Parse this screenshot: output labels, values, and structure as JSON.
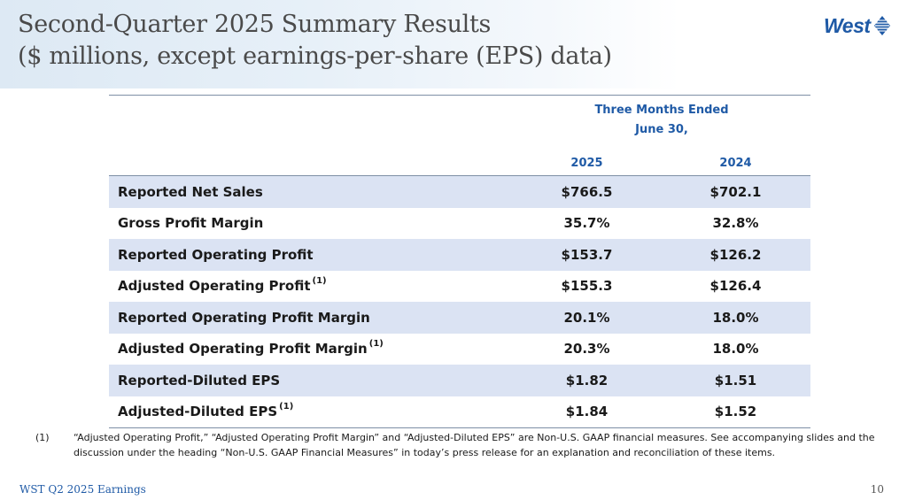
{
  "slide": {
    "title_line1": "Second-Quarter 2025 Summary Results",
    "title_line2": "($ millions, except earnings-per-share (EPS) data)",
    "logo_text": "West"
  },
  "table": {
    "group_header_line1": "Three Months Ended",
    "group_header_line2": "June 30,",
    "col_2025": "2025",
    "col_2024": "2024",
    "rows": [
      {
        "label": "Reported Net Sales",
        "note": "",
        "v2025": "$766.5",
        "v2024": "$702.1"
      },
      {
        "label": "Gross Profit Margin",
        "note": "",
        "v2025": "35.7%",
        "v2024": "32.8%"
      },
      {
        "label": "Reported Operating Profit",
        "note": "",
        "v2025": "$153.7",
        "v2024": "$126.2"
      },
      {
        "label": "Adjusted Operating Profit",
        "note": "(1)",
        "v2025": "$155.3",
        "v2024": "$126.4"
      },
      {
        "label": "Reported Operating Profit Margin",
        "note": "",
        "v2025": "20.1%",
        "v2024": "18.0%"
      },
      {
        "label": "Adjusted Operating Profit Margin",
        "note": "(1)",
        "v2025": "20.3%",
        "v2024": "18.0%"
      },
      {
        "label": "Reported-Diluted EPS",
        "note": "",
        "v2025": "$1.82",
        "v2024": "$1.51"
      },
      {
        "label": "Adjusted-Diluted EPS",
        "note": "(1)",
        "v2025": "$1.84",
        "v2024": "$1.52"
      }
    ]
  },
  "footnote": {
    "marker": "(1)",
    "text": "“Adjusted Operating Profit,” “Adjusted Operating Profit Margin” and “Adjusted-Diluted EPS” are Non-U.S. GAAP financial measures. See accompanying slides and the discussion under the heading “Non-U.S. GAAP Financial Measures” in today’s press release for an explanation and reconciliation of these items."
  },
  "footer": {
    "left": "WST Q2 2025 Earnings",
    "page_number": "10"
  },
  "colors": {
    "accent_blue": "#1f5aa6",
    "row_shade": "#dbe3f3",
    "title_gray": "#4a4a4a"
  }
}
